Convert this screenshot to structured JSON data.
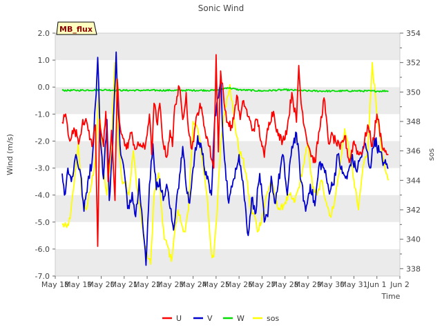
{
  "chart_data": {
    "type": "line",
    "title": "Sonic Wind",
    "xlabel": "Time",
    "ylabel": "Wind (m/s)",
    "y2label": "sos",
    "ylim": [
      -7.0,
      2.0
    ],
    "y2lim": [
      337.5,
      354.0
    ],
    "xlim": [
      0,
      15
    ],
    "yticks": [
      "2.0",
      "1.0",
      "0.0",
      "-1.0",
      "-2.0",
      "-3.0",
      "-4.0",
      "-5.0",
      "-6.0",
      "-7.0"
    ],
    "y2ticks": [
      "354",
      "352",
      "350",
      "348",
      "346",
      "344",
      "342",
      "340",
      "338"
    ],
    "xticks": [
      "May 18",
      "May 19",
      "May 20",
      "May 21",
      "May 22",
      "May 23",
      "May 24",
      "May 25",
      "May 26",
      "May 27",
      "May 28",
      "May 29",
      "May 30",
      "May 31",
      "Jun 1",
      "Jun 2"
    ],
    "badge": "MB_flux",
    "legend_position": "bottom-center",
    "colors": {
      "U": "#ff0000",
      "V": "#0000cc",
      "W": "#00dd00",
      "sos": "#ffff00",
      "band": "#ebebeb",
      "badge_bg": "#ffffc0",
      "badge_text": "#8b0000"
    },
    "series": [
      {
        "name": "U",
        "axis": "left",
        "x": [
          0.3,
          0.45,
          0.6,
          0.85,
          1.05,
          1.2,
          1.4,
          1.6,
          1.75,
          1.85,
          1.93,
          2.1,
          2.2,
          2.3,
          2.45,
          2.6,
          2.7,
          2.8,
          2.95,
          3.1,
          3.3,
          3.5,
          3.7,
          3.9,
          4.1,
          4.2,
          4.3,
          4.45,
          4.55,
          4.7,
          4.85,
          5.0,
          5.1,
          5.2,
          5.4,
          5.55,
          5.7,
          5.8,
          5.95,
          6.1,
          6.3,
          6.5,
          6.7,
          6.9,
          7.0,
          7.1,
          7.2,
          7.35,
          7.5,
          7.7,
          7.9,
          8.05,
          8.2,
          8.4,
          8.6,
          8.8,
          9.0,
          9.1,
          9.2,
          9.3,
          9.5,
          9.7,
          9.9,
          10.1,
          10.3,
          10.5,
          10.6,
          10.7,
          10.9,
          11.1,
          11.3,
          11.5,
          11.7,
          11.9,
          12.0,
          12.2,
          12.4,
          12.6,
          12.8,
          13.0,
          13.2,
          13.4,
          13.6,
          13.8,
          14.0,
          14.2,
          14.35,
          14.5
        ],
        "values": [
          -1.3,
          -1.0,
          -1.9,
          -1.6,
          -2.0,
          -1.2,
          -1.4,
          -2.2,
          -1.4,
          -5.9,
          -1.2,
          -2.2,
          -0.9,
          -3.5,
          -1.6,
          -4.2,
          0.3,
          -1.3,
          -1.9,
          -2.3,
          -1.7,
          -2.3,
          -2.1,
          -2.3,
          -1.0,
          -2.5,
          -0.6,
          -1.4,
          -0.6,
          -2.1,
          -2.6,
          -1.6,
          -2.2,
          -0.7,
          0.0,
          -1.2,
          -0.2,
          -1.6,
          -2.3,
          -1.4,
          -0.6,
          -1.5,
          -2.2,
          -3.0,
          1.2,
          -2.4,
          0.6,
          -0.6,
          -1.3,
          -1.5,
          -0.3,
          -1.2,
          -0.5,
          -1.1,
          -1.6,
          -1.2,
          -2.2,
          -2.6,
          -1.8,
          -1.3,
          -0.9,
          -1.8,
          -2.0,
          -1.5,
          -0.2,
          -1.3,
          0.8,
          -0.6,
          -1.7,
          -2.4,
          -2.8,
          -1.6,
          -0.4,
          -2.1,
          -1.8,
          -2.0,
          -2.3,
          -1.8,
          -2.8,
          -2.0,
          -2.5,
          -2.3,
          -1.4,
          -2.2,
          -1.0,
          -2.0,
          -2.4,
          -2.5
        ]
      },
      {
        "name": "V",
        "axis": "left",
        "x": [
          0.3,
          0.4,
          0.55,
          0.7,
          0.9,
          1.1,
          1.25,
          1.45,
          1.6,
          1.75,
          1.85,
          1.97,
          2.1,
          2.25,
          2.35,
          2.5,
          2.65,
          2.75,
          2.85,
          3.0,
          3.15,
          3.35,
          3.5,
          3.65,
          3.8,
          3.95,
          4.1,
          4.25,
          4.4,
          4.55,
          4.7,
          4.85,
          5.0,
          5.15,
          5.3,
          5.45,
          5.55,
          5.7,
          5.85,
          6.0,
          6.2,
          6.4,
          6.6,
          6.8,
          6.95,
          7.1,
          7.2,
          7.3,
          7.4,
          7.55,
          7.7,
          7.85,
          8.0,
          8.2,
          8.4,
          8.55,
          8.7,
          8.9,
          9.1,
          9.25,
          9.4,
          9.55,
          9.7,
          9.9,
          10.1,
          10.3,
          10.5,
          10.7,
          10.9,
          11.1,
          11.3,
          11.5,
          11.7,
          11.9,
          12.1,
          12.3,
          12.5,
          12.7,
          12.9,
          13.1,
          13.3,
          13.5,
          13.7,
          13.9,
          14.1,
          14.3,
          14.5
        ],
        "values": [
          -3.2,
          -4.0,
          -3.0,
          -3.5,
          -2.5,
          -3.2,
          -4.6,
          -3.3,
          -2.8,
          -0.6,
          1.1,
          -2.0,
          -3.4,
          -1.2,
          -4.2,
          -2.1,
          1.3,
          -1.0,
          -2.5,
          -3.1,
          -4.5,
          -3.9,
          -4.8,
          -3.4,
          -5.0,
          -6.6,
          -3.6,
          -2.1,
          -3.8,
          -3.4,
          -4.2,
          -3.6,
          -4.5,
          -5.3,
          -4.0,
          -3.1,
          -2.2,
          -3.7,
          -4.3,
          -3.0,
          -1.8,
          -2.5,
          -3.4,
          -4.0,
          -1.0,
          -0.4,
          0.3,
          -1.8,
          -2.9,
          -4.3,
          -3.7,
          -3.0,
          -2.5,
          -3.8,
          -5.5,
          -4.1,
          -4.7,
          -3.2,
          -5.0,
          -4.8,
          -3.3,
          -4.3,
          -3.6,
          -2.5,
          -4.0,
          -2.2,
          -1.7,
          -3.5,
          -4.6,
          -3.6,
          -4.4,
          -2.8,
          -3.0,
          -3.8,
          -3.6,
          -2.5,
          -3.2,
          -3.4,
          -2.6,
          -3.1,
          -2.6,
          -2.1,
          -3.0,
          -1.9,
          -2.4,
          -2.8,
          -3.0
        ]
      },
      {
        "name": "W",
        "axis": "left",
        "x": [
          0.3,
          1.0,
          2.0,
          3.0,
          4.0,
          5.0,
          6.0,
          7.0,
          7.5,
          8.0,
          9.0,
          10.0,
          11.0,
          12.0,
          13.0,
          14.0,
          14.5
        ],
        "values": [
          -0.12,
          -0.12,
          -0.1,
          -0.12,
          -0.12,
          -0.12,
          -0.12,
          -0.12,
          -0.02,
          -0.1,
          -0.14,
          -0.1,
          -0.14,
          -0.15,
          -0.14,
          -0.15,
          -0.14
        ]
      },
      {
        "name": "sos",
        "axis": "right",
        "x": [
          0.3,
          0.5,
          0.65,
          0.8,
          1.0,
          1.15,
          1.35,
          1.55,
          1.75,
          1.9,
          2.05,
          2.25,
          2.4,
          2.6,
          2.75,
          2.9,
          3.05,
          3.2,
          3.4,
          3.55,
          3.7,
          3.85,
          4.0,
          4.15,
          4.3,
          4.5,
          4.6,
          4.75,
          4.9,
          5.05,
          5.2,
          5.35,
          5.5,
          5.65,
          5.8,
          6.0,
          6.2,
          6.4,
          6.6,
          6.8,
          6.9,
          7.05,
          7.2,
          7.4,
          7.6,
          7.8,
          8.0,
          8.15,
          8.3,
          8.5,
          8.7,
          8.8,
          9.0,
          9.2,
          9.4,
          9.6,
          9.8,
          10.0,
          10.2,
          10.4,
          10.6,
          10.8,
          11.0,
          11.2,
          11.4,
          11.6,
          11.8,
          12.0,
          12.2,
          12.4,
          12.6,
          12.8,
          13.0,
          13.2,
          13.4,
          13.6,
          13.8,
          14.0,
          14.2,
          14.4,
          14.5
        ],
        "values": [
          341.0,
          340.8,
          341.4,
          343.5,
          346.5,
          343.0,
          342.0,
          343.5,
          345.5,
          350.0,
          345.0,
          343.0,
          345.5,
          352.0,
          346.5,
          344.0,
          344.0,
          343.0,
          346.0,
          343.5,
          342.0,
          340.0,
          339.0,
          338.3,
          343.0,
          344.5,
          342.5,
          340.0,
          339.5,
          338.5,
          340.5,
          342.0,
          341.0,
          340.5,
          342.0,
          348.0,
          347.5,
          345.5,
          343.0,
          339.0,
          338.8,
          342.0,
          346.5,
          349.0,
          350.5,
          348.0,
          346.0,
          345.5,
          344.5,
          342.0,
          341.5,
          340.5,
          341.5,
          343.0,
          344.0,
          342.5,
          342.0,
          342.5,
          343.0,
          342.5,
          343.5,
          345.0,
          346.5,
          343.5,
          343.0,
          344.0,
          342.5,
          341.5,
          343.0,
          345.0,
          347.5,
          346.0,
          344.0,
          342.0,
          345.0,
          346.0,
          352.0,
          348.5,
          346.0,
          344.5,
          344.0
        ]
      }
    ]
  }
}
